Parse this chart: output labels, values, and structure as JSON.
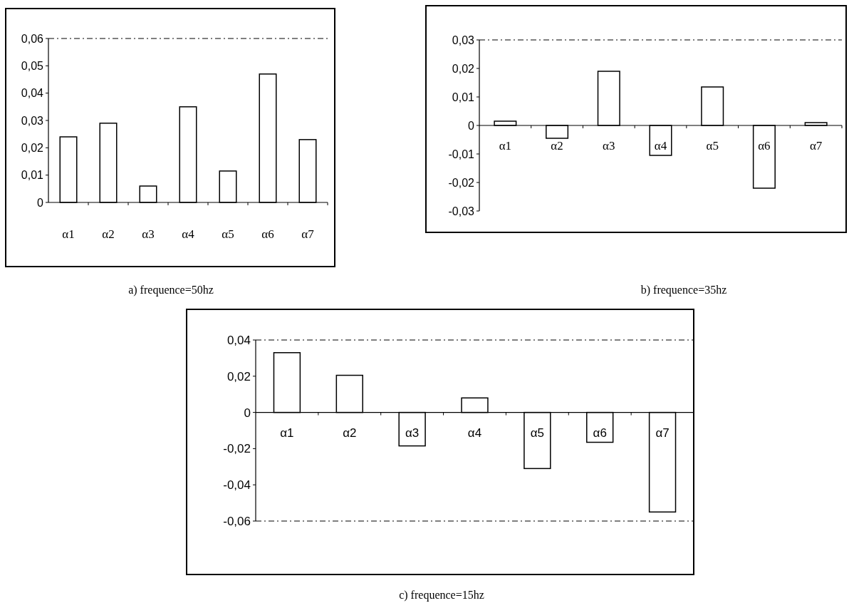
{
  "chart_data": [
    {
      "type": "bar",
      "title": "a) frequence=50hz",
      "categories": [
        "α1",
        "α2",
        "α3",
        "α4",
        "α5",
        "α6",
        "α7"
      ],
      "values": [
        0.024,
        0.029,
        0.006,
        0.035,
        0.0115,
        0.047,
        0.023
      ],
      "color": "#ffffff",
      "ylim": [
        0,
        0.06
      ],
      "yticks": [
        {
          "value": 0,
          "label": "0"
        },
        {
          "value": 0.01,
          "label": "0,01"
        },
        {
          "value": 0.02,
          "label": "0,02"
        },
        {
          "value": 0.03,
          "label": "0,03"
        },
        {
          "value": 0.04,
          "label": "0,04"
        },
        {
          "value": 0.05,
          "label": "0,05"
        },
        {
          "value": 0.06,
          "label": "0,06"
        }
      ]
    },
    {
      "type": "bar",
      "title": "b) frequence=35hz",
      "categories": [
        "α1",
        "α2",
        "α3",
        "α4",
        "α5",
        "α6",
        "α7"
      ],
      "values": [
        0.0015,
        -0.0045,
        0.019,
        -0.0105,
        0.0135,
        -0.022,
        0.001
      ],
      "color": "#ffffff",
      "ylim": [
        -0.03,
        0.03
      ],
      "yticks": [
        {
          "value": -0.03,
          "label": "-0,03"
        },
        {
          "value": -0.02,
          "label": "-0,02"
        },
        {
          "value": -0.01,
          "label": "-0,01"
        },
        {
          "value": 0,
          "label": "0"
        },
        {
          "value": 0.01,
          "label": "0,01"
        },
        {
          "value": 0.02,
          "label": "0,02"
        },
        {
          "value": 0.03,
          "label": "0,03"
        }
      ]
    },
    {
      "type": "bar",
      "title": "c) frequence=15hz",
      "categories": [
        "α1",
        "α2",
        "α3",
        "α4",
        "α5",
        "α6",
        "α7"
      ],
      "values": [
        0.033,
        0.0205,
        -0.0185,
        0.008,
        -0.031,
        -0.0165,
        -0.055
      ],
      "color": "#ffffff",
      "ylim": [
        -0.06,
        0.04
      ],
      "yticks": [
        {
          "value": -0.06,
          "label": "-0,06"
        },
        {
          "value": -0.04,
          "label": "-0,04"
        },
        {
          "value": -0.02,
          "label": "-0,02"
        },
        {
          "value": 0,
          "label": "0"
        },
        {
          "value": 0.02,
          "label": "0,02"
        },
        {
          "value": 0.04,
          "label": "0,04"
        }
      ]
    }
  ]
}
